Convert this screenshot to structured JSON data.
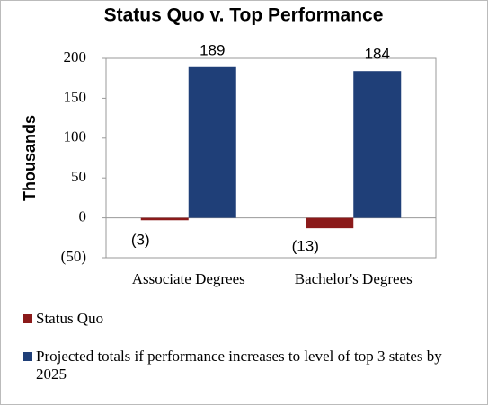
{
  "chart_data": {
    "type": "bar",
    "title": "Status Quo v. Top Performance",
    "y_label": "Thousands",
    "categories": [
      "Associate Degrees",
      "Bachelor's Degrees"
    ],
    "series": [
      {
        "name": "Status Quo",
        "color": "#8b1a1a",
        "values": [
          -3,
          -13
        ],
        "value_labels": [
          "(3)",
          "(13)"
        ]
      },
      {
        "name": "Projected totals if performance increases to level of top 3 states by 2025",
        "color": "#1f3f78",
        "values": [
          189,
          184
        ]
      }
    ],
    "ylim": [
      -50,
      200
    ],
    "yticks": [
      {
        "value": -50,
        "label": "(50)"
      },
      0,
      50,
      100,
      150,
      200
    ],
    "grid": false,
    "legend": "bottom"
  }
}
